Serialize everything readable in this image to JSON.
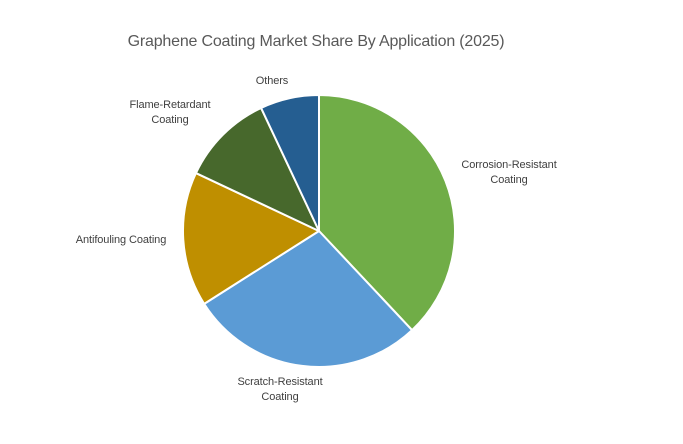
{
  "page": {
    "background": "#FFFFFF"
  },
  "chart_data": {
    "type": "pie",
    "title": "Graphene Coating Market Share By Application (2025)",
    "title_color": "#595959",
    "label_color": "#404040",
    "slice_border_color": "#FFFFFF",
    "start_angle_deg": 0,
    "direction": "clockwise",
    "legend": "none",
    "categories": [
      "Corrosion-Resistant Coating",
      "Scratch-Resistant Coating",
      "Antifouling Coating",
      "Flame-Retardant Coating",
      "Others"
    ],
    "values": [
      38,
      28,
      16,
      11,
      7
    ],
    "segments": [
      {
        "label": "Corrosion-Resistant Coating",
        "label_lines": [
          "Corrosion-Resistant",
          "Coating"
        ],
        "value_pct": 38,
        "color": "#70AD47"
      },
      {
        "label": "Scratch-Resistant Coating",
        "label_lines": [
          "Scratch-Resistant",
          "Coating"
        ],
        "value_pct": 28,
        "color": "#5B9BD5"
      },
      {
        "label": "Antifouling Coating",
        "label_lines": [
          "Antifouling Coating",
          ""
        ],
        "value_pct": 16,
        "color": "#BF8F00"
      },
      {
        "label": "Flame-Retardant Coating",
        "label_lines": [
          "Flame-Retardant",
          "Coating"
        ],
        "value_pct": 11,
        "color": "#47682C"
      },
      {
        "label": "Others",
        "label_lines": [
          "Others",
          ""
        ],
        "value_pct": 7,
        "color": "#255E91"
      }
    ]
  }
}
